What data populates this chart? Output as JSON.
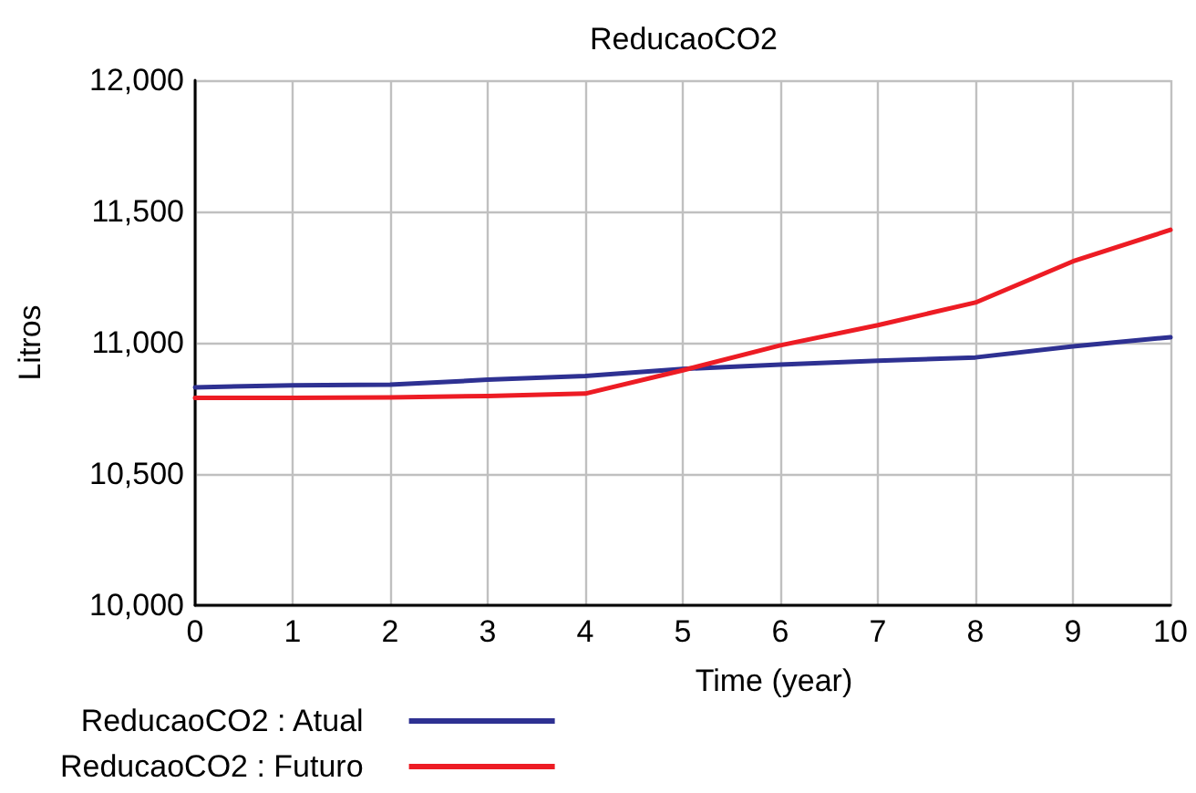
{
  "chart_data": {
    "type": "line",
    "title": "ReducaoCO2",
    "xlabel": "Time (year)",
    "ylabel": "Litros",
    "x": [
      0,
      1,
      2,
      3,
      4,
      5,
      6,
      7,
      8,
      9,
      10
    ],
    "series": [
      {
        "name": "ReducaoCO2 : Atual",
        "color": "#2e3192",
        "values": [
          10830,
          10838,
          10840,
          10859,
          10873,
          10900,
          10917,
          10931,
          10944,
          10986,
          11021
        ]
      },
      {
        "name": "ReducaoCO2 : Futuro",
        "color": "#ed1c24",
        "values": [
          10790,
          10790,
          10792,
          10797,
          10806,
          10895,
          10990,
          11067,
          11153,
          11310,
          11430
        ]
      }
    ],
    "xlim": [
      0,
      10
    ],
    "xticks": [
      0,
      1,
      2,
      3,
      4,
      5,
      6,
      7,
      8,
      9,
      10
    ],
    "ylim": [
      10000,
      12000
    ],
    "yticks": [
      {
        "value": 10000,
        "label": "10,000"
      },
      {
        "value": 10500,
        "label": "10,500"
      },
      {
        "value": 11000,
        "label": "11,000"
      },
      {
        "value": 11500,
        "label": "11,500"
      },
      {
        "value": 12000,
        "label": "12,000"
      }
    ],
    "grid": true,
    "legend": "bottom left",
    "line_style": "solid"
  }
}
